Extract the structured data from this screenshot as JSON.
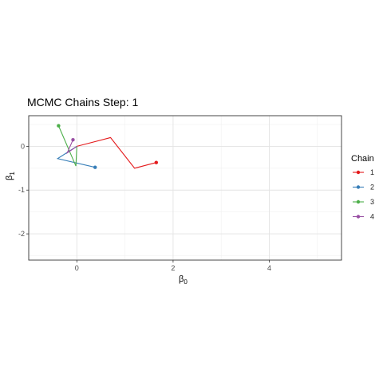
{
  "chart_data": {
    "type": "line",
    "title": "MCMC Chains Step: 1",
    "xlabel": "β0",
    "ylabel": "β1",
    "xlim": [
      -1.0,
      5.5
    ],
    "ylim": [
      -2.6,
      0.7
    ],
    "x_ticks": [
      0,
      2,
      4
    ],
    "y_ticks": [
      0,
      -1,
      -2
    ],
    "grid": true,
    "legend": {
      "title": "Chain",
      "position": "right"
    },
    "series": [
      {
        "name": "1",
        "color": "#E41A1C",
        "points": [
          [
            0.0,
            0.0
          ],
          [
            0.7,
            0.2
          ],
          [
            1.2,
            -0.5
          ],
          [
            1.65,
            -0.37
          ]
        ]
      },
      {
        "name": "2",
        "color": "#377EB8",
        "points": [
          [
            0.0,
            0.0
          ],
          [
            -0.4,
            -0.28
          ],
          [
            0.38,
            -0.48
          ]
        ]
      },
      {
        "name": "3",
        "color": "#4DAF4A",
        "points": [
          [
            0.0,
            0.0
          ],
          [
            -0.02,
            -0.45
          ],
          [
            -0.38,
            0.47
          ]
        ]
      },
      {
        "name": "4",
        "color": "#984EA3",
        "points": [
          [
            0.0,
            0.0
          ],
          [
            -0.2,
            -0.15
          ],
          [
            -0.08,
            0.15
          ]
        ]
      }
    ]
  }
}
